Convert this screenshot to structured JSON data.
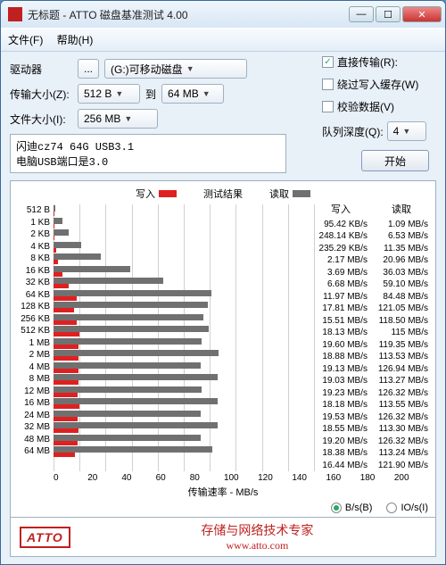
{
  "window": {
    "title": "无标题 - ATTO 磁盘基准测试 4.00",
    "menu": {
      "file": "文件(F)",
      "help": "帮助(H)"
    }
  },
  "controls": {
    "drive_label": "驱动器",
    "drive_value": "(G:)可移动磁盘",
    "xfer_label": "传输大小(Z):",
    "xfer_from": "512 B",
    "xfer_mid": "到",
    "xfer_to": "64 MB",
    "file_label": "文件大小(I):",
    "file_value": "256 MB"
  },
  "options": {
    "direct": {
      "label": "直接传输(R):",
      "checked": true
    },
    "bypass": {
      "label": "绕过写入缓存(W)",
      "checked": false
    },
    "verify": {
      "label": "校验数据(V)",
      "checked": false
    },
    "queue_label": "队列深度(Q):",
    "queue_value": "4",
    "start": "开始"
  },
  "notes": {
    "line1": "闪迪cz74 64G USB3.1",
    "line2": "电脑USB端口是3.0"
  },
  "chart": {
    "title_mid": "测试结果",
    "legend_write": "写入",
    "legend_read": "读取",
    "write_color": "#e02020",
    "read_color": "#707070",
    "xmax": 200,
    "x_ticks": [
      "0",
      "20",
      "40",
      "60",
      "80",
      "100",
      "120",
      "140",
      "160",
      "180",
      "200"
    ],
    "x_label": "传输速率 - MB/s",
    "col_write": "写入",
    "col_read": "读取",
    "rows": [
      {
        "label": "512 B",
        "w": 0.095,
        "r": 1.09,
        "wt": "95.42 KB/s",
        "rt": "1.09 MB/s"
      },
      {
        "label": "1 KB",
        "w": 0.248,
        "r": 6.53,
        "wt": "248.14 KB/s",
        "rt": "6.53 MB/s"
      },
      {
        "label": "2 KB",
        "w": 0.235,
        "r": 11.35,
        "wt": "235.29 KB/s",
        "rt": "11.35 MB/s"
      },
      {
        "label": "4 KB",
        "w": 2.17,
        "r": 20.96,
        "wt": "2.17 MB/s",
        "rt": "20.96 MB/s"
      },
      {
        "label": "8 KB",
        "w": 3.69,
        "r": 36.03,
        "wt": "3.69 MB/s",
        "rt": "36.03 MB/s"
      },
      {
        "label": "16 KB",
        "w": 6.68,
        "r": 59.1,
        "wt": "6.68 MB/s",
        "rt": "59.10 MB/s"
      },
      {
        "label": "32 KB",
        "w": 11.97,
        "r": 84.48,
        "wt": "11.97 MB/s",
        "rt": "84.48 MB/s"
      },
      {
        "label": "64 KB",
        "w": 17.81,
        "r": 121.05,
        "wt": "17.81 MB/s",
        "rt": "121.05 MB/s"
      },
      {
        "label": "128 KB",
        "w": 15.51,
        "r": 118.5,
        "wt": "15.51 MB/s",
        "rt": "118.50 MB/s"
      },
      {
        "label": "256 KB",
        "w": 18.13,
        "r": 115,
        "wt": "18.13 MB/s",
        "rt": "115 MB/s"
      },
      {
        "label": "512 KB",
        "w": 19.6,
        "r": 119.35,
        "wt": "19.60 MB/s",
        "rt": "119.35 MB/s"
      },
      {
        "label": "1 MB",
        "w": 18.88,
        "r": 113.53,
        "wt": "18.88 MB/s",
        "rt": "113.53 MB/s"
      },
      {
        "label": "2 MB",
        "w": 19.13,
        "r": 126.94,
        "wt": "19.13 MB/s",
        "rt": "126.94 MB/s"
      },
      {
        "label": "4 MB",
        "w": 19.03,
        "r": 113.27,
        "wt": "19.03 MB/s",
        "rt": "113.27 MB/s"
      },
      {
        "label": "8 MB",
        "w": 19.23,
        "r": 126.32,
        "wt": "19.23 MB/s",
        "rt": "126.32 MB/s"
      },
      {
        "label": "12 MB",
        "w": 18.18,
        "r": 113.55,
        "wt": "18.18 MB/s",
        "rt": "113.55 MB/s"
      },
      {
        "label": "16 MB",
        "w": 19.53,
        "r": 126.32,
        "wt": "19.53 MB/s",
        "rt": "126.32 MB/s"
      },
      {
        "label": "24 MB",
        "w": 18.55,
        "r": 113.3,
        "wt": "18.55 MB/s",
        "rt": "113.30 MB/s"
      },
      {
        "label": "32 MB",
        "w": 19.2,
        "r": 126.32,
        "wt": "19.20 MB/s",
        "rt": "126.32 MB/s"
      },
      {
        "label": "48 MB",
        "w": 18.38,
        "r": 113.24,
        "wt": "18.38 MB/s",
        "rt": "113.24 MB/s"
      },
      {
        "label": "64 MB",
        "w": 16.44,
        "r": 121.9,
        "wt": "16.44 MB/s",
        "rt": "121.90 MB/s"
      }
    ],
    "radio_bs": "B/s(B)",
    "radio_io": "IO/s(I)"
  },
  "footer": {
    "logo": "ATTO",
    "tagline": "存储与网络技术专家",
    "url": "www.atto.com"
  }
}
